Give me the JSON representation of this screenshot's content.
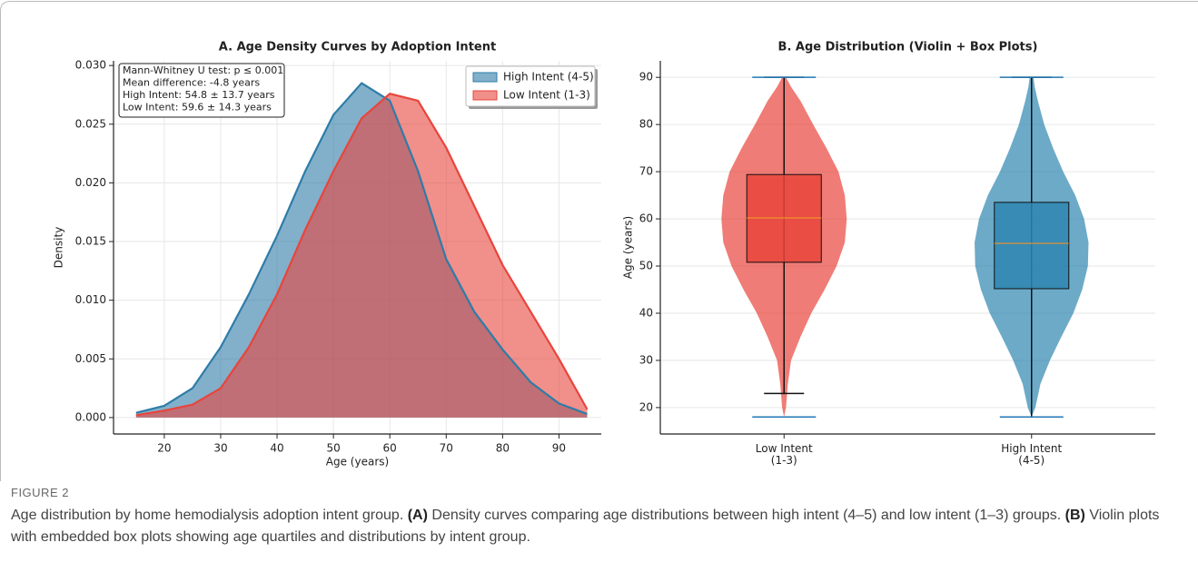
{
  "chart_data": [
    {
      "type": "density",
      "title": "A. Age Density Curves by Adoption Intent",
      "xlabel": "Age (years)",
      "ylabel": "Density",
      "x": [
        15,
        20,
        25,
        30,
        35,
        40,
        45,
        50,
        55,
        60,
        65,
        70,
        75,
        80,
        85,
        90,
        95
      ],
      "series": [
        {
          "name": "High Intent (4-5)",
          "color": "#2e7ca8",
          "values": [
            0.0004,
            0.001,
            0.0025,
            0.006,
            0.0105,
            0.0155,
            0.021,
            0.0258,
            0.0285,
            0.027,
            0.021,
            0.0135,
            0.009,
            0.0058,
            0.003,
            0.0012,
            0.0003
          ]
        },
        {
          "name": "Low Intent (1-3)",
          "color": "#e8453c",
          "values": [
            0.0002,
            0.0006,
            0.0011,
            0.0025,
            0.006,
            0.0105,
            0.016,
            0.021,
            0.0255,
            0.0276,
            0.027,
            0.023,
            0.018,
            0.013,
            0.009,
            0.005,
            0.0007
          ]
        }
      ],
      "xlim": [
        11,
        97.5
      ],
      "ylim": [
        -0.0014,
        0.0304
      ],
      "xticks": [
        20,
        30,
        40,
        50,
        60,
        70,
        80,
        90
      ],
      "yticks": [
        {
          "value": 0,
          "label": "0.000"
        },
        {
          "value": 0.005,
          "label": "0.005"
        },
        {
          "value": 0.01,
          "label": "0.010"
        },
        {
          "value": 0.015,
          "label": "0.015"
        },
        {
          "value": 0.02,
          "label": "0.020"
        },
        {
          "value": 0.025,
          "label": "0.025"
        },
        {
          "value": 0.03,
          "label": "0.030"
        }
      ],
      "grid": true,
      "legend": "upper right",
      "annotation": [
        "Mann-Whitney U test: p ≤ 0.001",
        "Mean difference: -4.8 years",
        "High Intent: 54.8 ± 13.7 years",
        "Low Intent: 59.6 ± 14.3 years"
      ]
    },
    {
      "type": "violin",
      "title": "B. Age Distribution (Violin + Box Plots)",
      "ylabel": "Age (years)",
      "categories": [
        "Low Intent\n(1-3)",
        "High Intent\n(4-5)"
      ],
      "colors": [
        "#e8453c",
        "#2e86b0"
      ],
      "q1": [
        50.8,
        45.2
      ],
      "median": [
        60.2,
        54.8
      ],
      "q3": [
        69.4,
        63.5
      ],
      "whisker_low": [
        23,
        18
      ],
      "whisker_high": [
        90,
        90
      ],
      "min": [
        18,
        18
      ],
      "max": [
        90,
        90
      ],
      "violin_ages": [
        18,
        20,
        25,
        30,
        35,
        40,
        45,
        50,
        55,
        60,
        65,
        70,
        75,
        80,
        85,
        88,
        90
      ],
      "violin_density": [
        [
          0,
          0.03,
          0.06,
          0.11,
          0.26,
          0.43,
          0.64,
          0.83,
          0.96,
          0.99,
          0.96,
          0.86,
          0.67,
          0.46,
          0.26,
          0.11,
          0.03
        ],
        [
          0,
          0.06,
          0.14,
          0.29,
          0.47,
          0.66,
          0.8,
          0.89,
          0.9,
          0.83,
          0.69,
          0.5,
          0.34,
          0.2,
          0.1,
          0.05,
          0.03
        ]
      ],
      "ylim": [
        14.4,
        93.5
      ],
      "yticks": [
        20,
        30,
        40,
        50,
        60,
        70,
        80,
        90
      ],
      "grid": true
    }
  ],
  "caption": {
    "label": "FIGURE 2",
    "parts": [
      {
        "text": "Age distribution by home hemodialysis adoption intent group. ",
        "bold": false
      },
      {
        "text": "(A)",
        "bold": true
      },
      {
        "text": " Density curves comparing age distributions between high intent (4–5) and low intent (1–3) groups. ",
        "bold": false
      },
      {
        "text": "(B)",
        "bold": true
      },
      {
        "text": " Violin plots with embedded box plots showing age quartiles and distributions by intent group.",
        "bold": false
      }
    ]
  }
}
